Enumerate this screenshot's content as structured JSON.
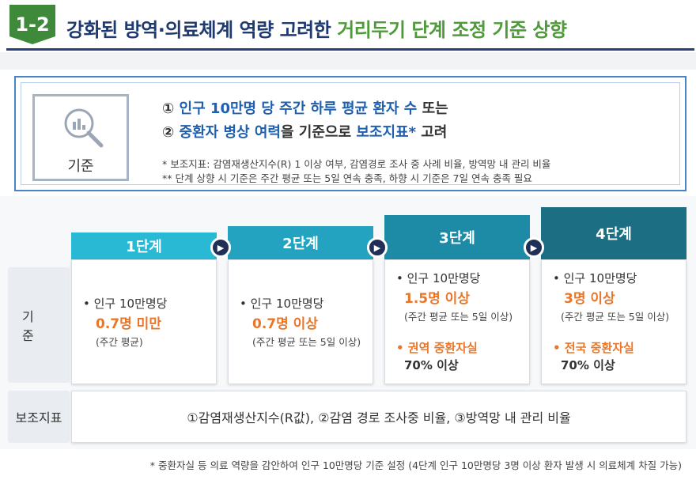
{
  "header": {
    "badge": "1-2",
    "title_main": "강화된 방역·의료체계 역량 고려한 ",
    "title_accent": "거리두기 단계 조정 기준 상향"
  },
  "criteria": {
    "icon_label": "기준",
    "line1_num": "①",
    "line1_blue": "인구 10만명 당 주간 하루 평균 환자 수",
    "line1_rest": " 또는",
    "line2_num": "②",
    "line2_blue1": "중환자 병상 여력",
    "line2_mid": "을 기준으로 ",
    "line2_blue2": "보조지표*",
    "line2_rest": " 고려",
    "note1": "* 보조지표: 감염재생산지수(R) 1 이상 여부, 감염경로 조사 중 사례 비율, 방역망 내 관리 비율",
    "note2": "** 단계 상향 시 기준은 주간 평균 또는 5일 연속 충족, 하향 시 기준은 7일 연속 충족 필요"
  },
  "stages": [
    {
      "label": "1단계",
      "pop": "• 인구 10만명당",
      "value": "0.7명 미만",
      "note": "(주간 평균)"
    },
    {
      "label": "2단계",
      "pop": "• 인구 10만명당",
      "value": "0.7명 이상",
      "note": "(주간 평균 또는 5일 이상)"
    },
    {
      "label": "3단계",
      "pop": "• 인구 10만명당",
      "value": "1.5명 이상",
      "note": "(주간 평균 또는 5일 이상)",
      "icu": "• 권역 중환자실",
      "icu_rate": "70% 이상"
    },
    {
      "label": "4단계",
      "pop": "• 인구 10만명당",
      "value": "3명 이상",
      "note": "(주간 평균 또는 5일 이상)",
      "icu": "• 전국 중환자실",
      "icu_rate": "70% 이상"
    }
  ],
  "rows": {
    "criteria_label": "기 준",
    "aux_label": "보조지표",
    "aux_text": "①감염재생산지수(R값), ②감염 경로 조사중 비율, ③방역망 내 관리 비율"
  },
  "footnote": "* 중환자실 등 의료 역량을 감안하여 인구 10만명당 기준 설정 (4단계 인구 10만명당 3명 이상 환자 발생 시 의료체계 차질 가능)",
  "colors": {
    "stage1": "#2ab9d4",
    "stage2": "#23a3bf",
    "stage3": "#1e8ba6",
    "stage4": "#1c6f82",
    "accent_orange": "#e9772a",
    "accent_blue": "#1f5fb0",
    "title_green": "#4f9a3a"
  }
}
